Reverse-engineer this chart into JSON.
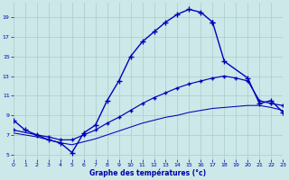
{
  "background_color": "#cce8e8",
  "grid_color": "#aacccc",
  "line_color": "#0000bb",
  "xlabel": "Graphe des températures (°c)",
  "xlim": [
    0,
    23
  ],
  "ylim": [
    4.5,
    20.5
  ],
  "yticks": [
    5,
    7,
    9,
    11,
    13,
    15,
    17,
    19
  ],
  "xticks": [
    0,
    1,
    2,
    3,
    4,
    5,
    6,
    7,
    8,
    9,
    10,
    11,
    12,
    13,
    14,
    15,
    16,
    17,
    18,
    19,
    20,
    21,
    22,
    23
  ],
  "curve1_x": [
    0,
    1,
    2,
    3,
    4,
    5,
    6,
    7,
    8,
    9,
    10,
    11,
    12,
    13,
    14,
    15,
    16,
    17
  ],
  "curve1_y": [
    8.5,
    7.5,
    7.0,
    6.5,
    6.2,
    5.2,
    7.2,
    8.0,
    10.5,
    12.5,
    15.0,
    16.5,
    17.5,
    18.5,
    19.3,
    19.8,
    19.5,
    18.5
  ],
  "curve2_x": [
    17,
    18,
    20,
    21,
    22,
    23
  ],
  "curve2_y": [
    18.5,
    14.5,
    12.8,
    10.2,
    10.5,
    9.3
  ],
  "curve3_x": [
    0,
    2,
    3,
    4,
    5,
    6,
    7,
    8,
    9,
    10,
    11,
    12,
    13,
    14,
    15,
    16,
    17,
    18,
    19,
    20,
    21,
    22,
    23
  ],
  "curve3_y": [
    7.5,
    7.0,
    6.8,
    6.5,
    6.5,
    7.0,
    7.5,
    8.2,
    8.8,
    9.5,
    10.2,
    10.8,
    11.3,
    11.8,
    12.2,
    12.5,
    12.8,
    13.0,
    12.8,
    12.5,
    10.5,
    10.2,
    10.0
  ],
  "curve4_x": [
    0,
    2,
    3,
    4,
    5,
    6,
    7,
    8,
    9,
    10,
    11,
    12,
    13,
    14,
    15,
    16,
    17,
    18,
    19,
    20,
    21,
    22,
    23
  ],
  "curve4_y": [
    7.2,
    6.8,
    6.5,
    6.2,
    6.0,
    6.3,
    6.6,
    7.0,
    7.4,
    7.8,
    8.2,
    8.5,
    8.8,
    9.0,
    9.3,
    9.5,
    9.7,
    9.8,
    9.9,
    10.0,
    10.0,
    9.8,
    9.5
  ],
  "marker": "+",
  "markersize": 4,
  "linewidth": 1.0
}
